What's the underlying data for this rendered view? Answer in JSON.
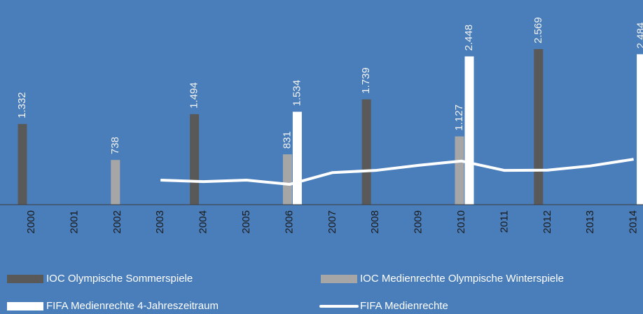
{
  "chart_data": {
    "type": "bar",
    "categories": [
      "2000",
      "2001",
      "2002",
      "2003",
      "2004",
      "2005",
      "2006",
      "2007",
      "2008",
      "2009",
      "2010",
      "2011",
      "2012",
      "2013",
      "2014"
    ],
    "series": [
      {
        "name": "IOC Olympische Sommerspiele",
        "color": "#595959",
        "type": "bar",
        "values": [
          1332,
          null,
          null,
          null,
          1494,
          null,
          null,
          null,
          1739,
          null,
          null,
          null,
          2569,
          null,
          null
        ],
        "value_labels": [
          "1.332",
          null,
          null,
          null,
          "1.494",
          null,
          null,
          null,
          "1.739",
          null,
          null,
          null,
          "2.569",
          null,
          null
        ]
      },
      {
        "name": "IOC Medienrechte Olympische Winterspiele",
        "color": "#a6a6a6",
        "type": "bar",
        "values": [
          null,
          null,
          738,
          null,
          null,
          null,
          831,
          null,
          null,
          null,
          1127,
          null,
          null,
          null,
          null
        ],
        "value_labels": [
          null,
          null,
          "738",
          null,
          null,
          null,
          "831",
          null,
          null,
          null,
          "1.127",
          null,
          null,
          null,
          null
        ]
      },
      {
        "name": "FIFA Medienrechte 4-Jahreszeitraum",
        "color": "#ffffff",
        "type": "bar",
        "values": [
          null,
          null,
          null,
          null,
          null,
          null,
          1534,
          null,
          null,
          null,
          2448,
          null,
          null,
          null,
          2484
        ],
        "value_labels": [
          null,
          null,
          null,
          null,
          null,
          null,
          "1.534",
          null,
          null,
          null,
          "2.448",
          null,
          null,
          null,
          "2.484"
        ]
      },
      {
        "name": "FIFA Medienrechte",
        "color": "#ffffff",
        "type": "line",
        "values": [
          null,
          null,
          null,
          405,
          380,
          405,
          335,
          530,
          565,
          650,
          720,
          565,
          570,
          640,
          750
        ]
      }
    ]
  }
}
